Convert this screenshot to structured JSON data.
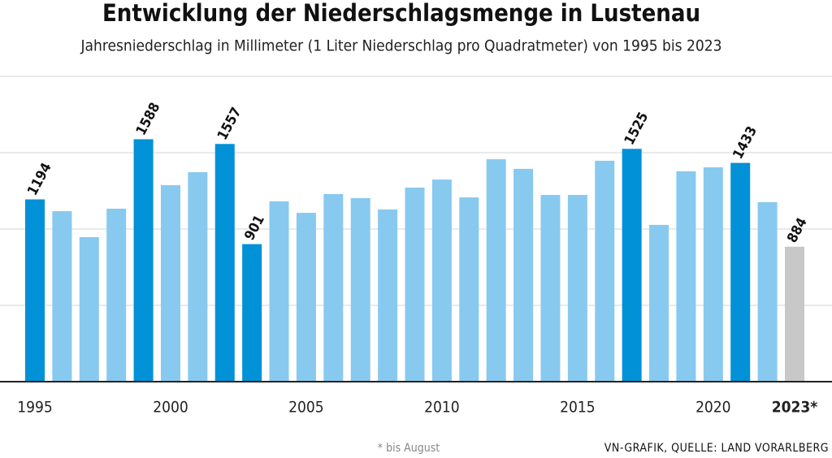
{
  "chart_data": {
    "type": "bar",
    "title": "Entwicklung der Niederschlagsmenge in Lustenau",
    "subtitle": "Jahresniederschlag in Millimeter (1 Liter Niederschlag pro Quadratmeter) von 1995 bis 2023",
    "categories": [
      "1995",
      null,
      null,
      null,
      null,
      "2000",
      null,
      null,
      null,
      null,
      "2005",
      null,
      null,
      null,
      null,
      "2010",
      null,
      null,
      null,
      null,
      "2015",
      null,
      null,
      null,
      null,
      "2020",
      null,
      null,
      "2023*"
    ],
    "values": [
      1194,
      1117,
      947,
      1133,
      1588,
      1287,
      1372,
      1557,
      901,
      1181,
      1106,
      1229,
      1202,
      1128,
      1271,
      1324,
      1207,
      1457,
      1394,
      1223,
      1223,
      1447,
      1525,
      1027,
      1378,
      1404,
      1433,
      1176,
      884
    ],
    "value_labels": [
      "1194",
      null,
      null,
      null,
      "1588",
      null,
      null,
      "1557",
      "901",
      null,
      null,
      null,
      null,
      null,
      null,
      null,
      null,
      null,
      null,
      null,
      null,
      null,
      "1525",
      null,
      null,
      null,
      "1433",
      null,
      "884"
    ],
    "colors": [
      "#0091d7",
      "#88c9ef",
      "#88c9ef",
      "#88c9ef",
      "#0091d7",
      "#88c9ef",
      "#88c9ef",
      "#0091d7",
      "#0091d7",
      "#88c9ef",
      "#88c9ef",
      "#88c9ef",
      "#88c9ef",
      "#88c9ef",
      "#88c9ef",
      "#88c9ef",
      "#88c9ef",
      "#88c9ef",
      "#88c9ef",
      "#88c9ef",
      "#88c9ef",
      "#88c9ef",
      "#0091d7",
      "#88c9ef",
      "#88c9ef",
      "#88c9ef",
      "#0091d7",
      "#88c9ef",
      "#c8c8c8"
    ],
    "ylim": [
      0,
      2000
    ],
    "yticks": [
      500,
      1000,
      1500,
      2000
    ],
    "grid": true,
    "footnote": "* bis August",
    "source": "VN-GRAFIK, QUELLE: LAND VORARLBERG"
  }
}
